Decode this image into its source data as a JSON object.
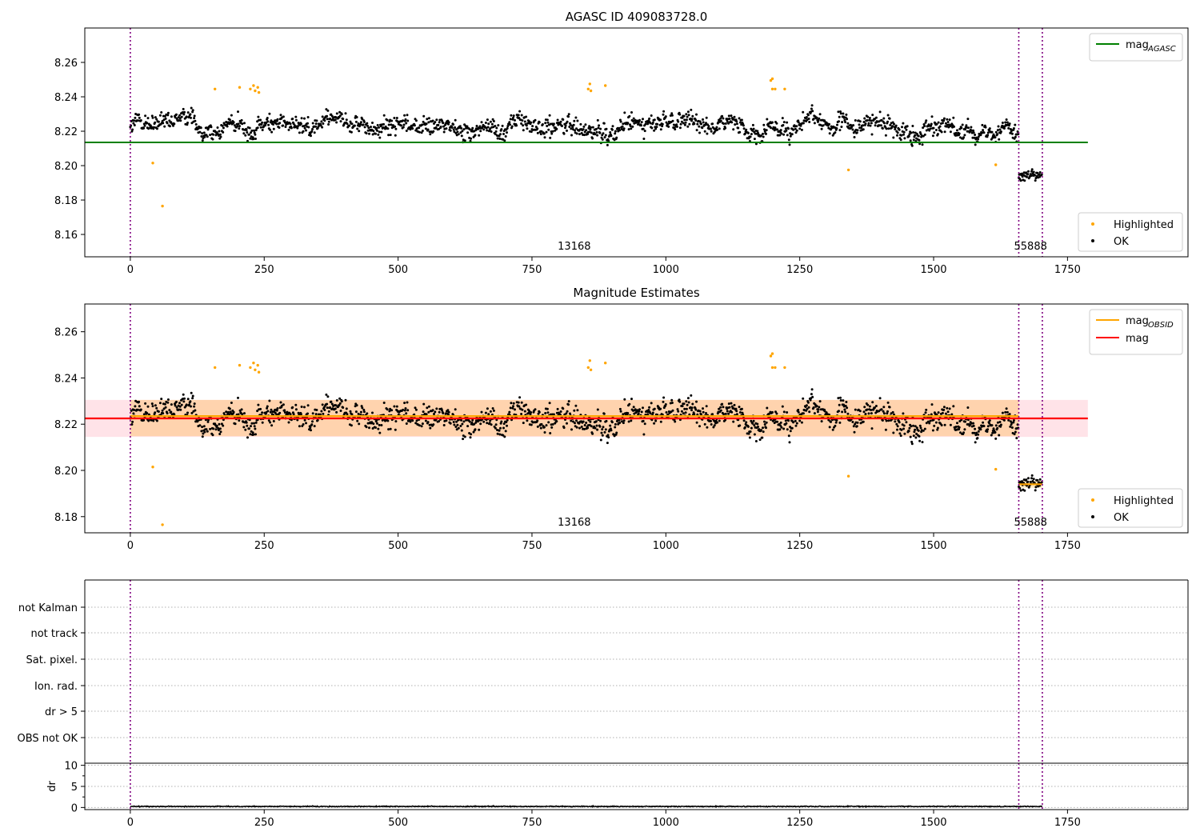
{
  "chart_data": [
    {
      "type": "scatter",
      "title": "AGASC ID 409083728.0",
      "xlim": [
        -85,
        1975
      ],
      "ylim": [
        8.147,
        8.28
      ],
      "xticks": [
        0,
        250,
        500,
        750,
        1000,
        1250,
        1500,
        1750
      ],
      "yticks": [
        8.16,
        8.18,
        8.2,
        8.22,
        8.24,
        8.26
      ],
      "obsid_boundaries": [
        0,
        1659,
        1703
      ],
      "obsid_labels": [
        {
          "text": "13168",
          "x": 829
        },
        {
          "text": "55888",
          "x": 1681
        }
      ],
      "lines": [
        {
          "name": "mag_AGASC",
          "label": "mag",
          "subscript": "AGASC",
          "color": "#008000",
          "x": [
            -85,
            1788
          ],
          "y": 8.2135
        }
      ],
      "legend_upper": {
        "position": "top-right",
        "entries": [
          {
            "label": "mag",
            "subscript": "AGASC",
            "color": "#008000",
            "kind": "line"
          }
        ]
      },
      "legend_lower": {
        "position": "lower-right",
        "entries": [
          {
            "label": "Highlighted",
            "color": "#ffa500",
            "kind": "point"
          },
          {
            "label": "OK",
            "color": "#000000",
            "kind": "point"
          }
        ]
      },
      "series": [
        {
          "name": "OK",
          "color": "#000000",
          "segments": [
            {
              "x": [
                0,
                1659
              ],
              "y_mean": 8.2233,
              "spread": 0.0095
            },
            {
              "x": [
                1659,
                1703
              ],
              "y_mean": 8.1935,
              "spread": 0.0055
            }
          ]
        },
        {
          "name": "Highlighted",
          "color": "#ffa500",
          "points": [
            [
              42,
              8.2015
            ],
            [
              60,
              8.1765
            ],
            [
              158,
              8.2445
            ],
            [
              204,
              8.2455
            ],
            [
              224,
              8.2445
            ],
            [
              230,
              8.2465
            ],
            [
              233,
              8.2435
            ],
            [
              238,
              8.2455
            ],
            [
              240,
              8.2425
            ],
            [
              855,
              8.2445
            ],
            [
              858,
              8.2475
            ],
            [
              860,
              8.2435
            ],
            [
              887,
              8.2465
            ],
            [
              1196,
              8.2495
            ],
            [
              1199,
              8.2505
            ],
            [
              1199,
              8.2445
            ],
            [
              1204,
              8.2445
            ],
            [
              1222,
              8.2445
            ],
            [
              1341,
              8.1975
            ],
            [
              1616,
              8.2005
            ]
          ]
        }
      ]
    },
    {
      "type": "scatter",
      "title": "Magnitude Estimates",
      "xlim": [
        -85,
        1975
      ],
      "ylim": [
        8.173,
        8.272
      ],
      "xticks": [
        0,
        250,
        500,
        750,
        1000,
        1250,
        1500,
        1750
      ],
      "yticks": [
        8.18,
        8.2,
        8.22,
        8.24,
        8.26
      ],
      "obsid_boundaries": [
        0,
        1659,
        1703
      ],
      "obsid_labels": [
        {
          "text": "13168",
          "x": 829
        },
        {
          "text": "55888",
          "x": 1681
        }
      ],
      "bands": [
        {
          "name": "mag range",
          "color": "#ffc0cb",
          "opacity": 0.45,
          "x": [
            -85,
            1788
          ],
          "y": [
            8.2145,
            8.2305
          ]
        },
        {
          "name": "mag_OBSID range 13168",
          "color": "#ffa500",
          "opacity": 0.25,
          "x": [
            0,
            1659
          ],
          "y": [
            8.2148,
            8.2305
          ]
        },
        {
          "name": "mag_OBSID range 55888",
          "color": "#ffa500",
          "opacity": 0.25,
          "x": [
            1659,
            1703
          ],
          "y": [
            8.1925,
            8.1955
          ]
        }
      ],
      "lines": [
        {
          "name": "mag_OBSID 13168",
          "color": "#ffa500",
          "x": [
            0,
            1659
          ],
          "y": 8.2235
        },
        {
          "name": "mag_OBSID 55888",
          "color": "#ffa500",
          "x": [
            1659,
            1703
          ],
          "y": 8.194
        },
        {
          "name": "mag",
          "color": "#ff0000",
          "x": [
            -85,
            1788
          ],
          "y": 8.2225
        }
      ],
      "legend_upper": {
        "position": "top-right",
        "entries": [
          {
            "label": "mag",
            "subscript": "OBSID",
            "color": "#ffa500",
            "kind": "line"
          },
          {
            "label": "mag",
            "subscript": "",
            "color": "#ff0000",
            "kind": "line"
          }
        ]
      },
      "legend_lower": {
        "position": "lower-right",
        "entries": [
          {
            "label": "Highlighted",
            "color": "#ffa500",
            "kind": "point"
          },
          {
            "label": "OK",
            "color": "#000000",
            "kind": "point"
          }
        ]
      },
      "series": [
        {
          "name": "OK",
          "color": "#000000",
          "segments": [
            {
              "x": [
                0,
                1659
              ],
              "y_mean": 8.2233,
              "spread": 0.0095
            },
            {
              "x": [
                1659,
                1703
              ],
              "y_mean": 8.1935,
              "spread": 0.0055
            }
          ]
        },
        {
          "name": "Highlighted",
          "color": "#ffa500",
          "points": [
            [
              42,
              8.2015
            ],
            [
              60,
              8.1765
            ],
            [
              158,
              8.2445
            ],
            [
              204,
              8.2455
            ],
            [
              224,
              8.2445
            ],
            [
              230,
              8.2465
            ],
            [
              233,
              8.2435
            ],
            [
              238,
              8.2455
            ],
            [
              240,
              8.2425
            ],
            [
              855,
              8.2445
            ],
            [
              858,
              8.2475
            ],
            [
              860,
              8.2435
            ],
            [
              887,
              8.2465
            ],
            [
              1196,
              8.2495
            ],
            [
              1199,
              8.2505
            ],
            [
              1199,
              8.2445
            ],
            [
              1204,
              8.2445
            ],
            [
              1222,
              8.2445
            ],
            [
              1341,
              8.1975
            ],
            [
              1616,
              8.2005
            ]
          ]
        }
      ]
    },
    {
      "type": "scatter",
      "title": "",
      "xlim": [
        -85,
        1975
      ],
      "flag_labels": [
        "not Kalman",
        "not track",
        "Sat. pixel.",
        "Ion. rad.",
        "dr > 5",
        "OBS not OK"
      ],
      "obsid_boundaries": [
        0,
        1659,
        1703
      ],
      "grid": "dotted horizontal"
    },
    {
      "type": "line",
      "title": "",
      "xlim": [
        -85,
        1975
      ],
      "ylim": [
        -0.5,
        10.5
      ],
      "ylabel": "dr",
      "xticks": [
        0,
        250,
        500,
        750,
        1000,
        1250,
        1500,
        1750
      ],
      "yticks": [
        0,
        5,
        10
      ],
      "obsid_boundaries": [
        0,
        1659,
        1703
      ],
      "grid": "dotted horizontal",
      "series": [
        {
          "name": "dr",
          "color": "#000000",
          "x": [
            0,
            1703
          ],
          "y_mean": 0.25,
          "spread": 0.15
        }
      ]
    }
  ]
}
